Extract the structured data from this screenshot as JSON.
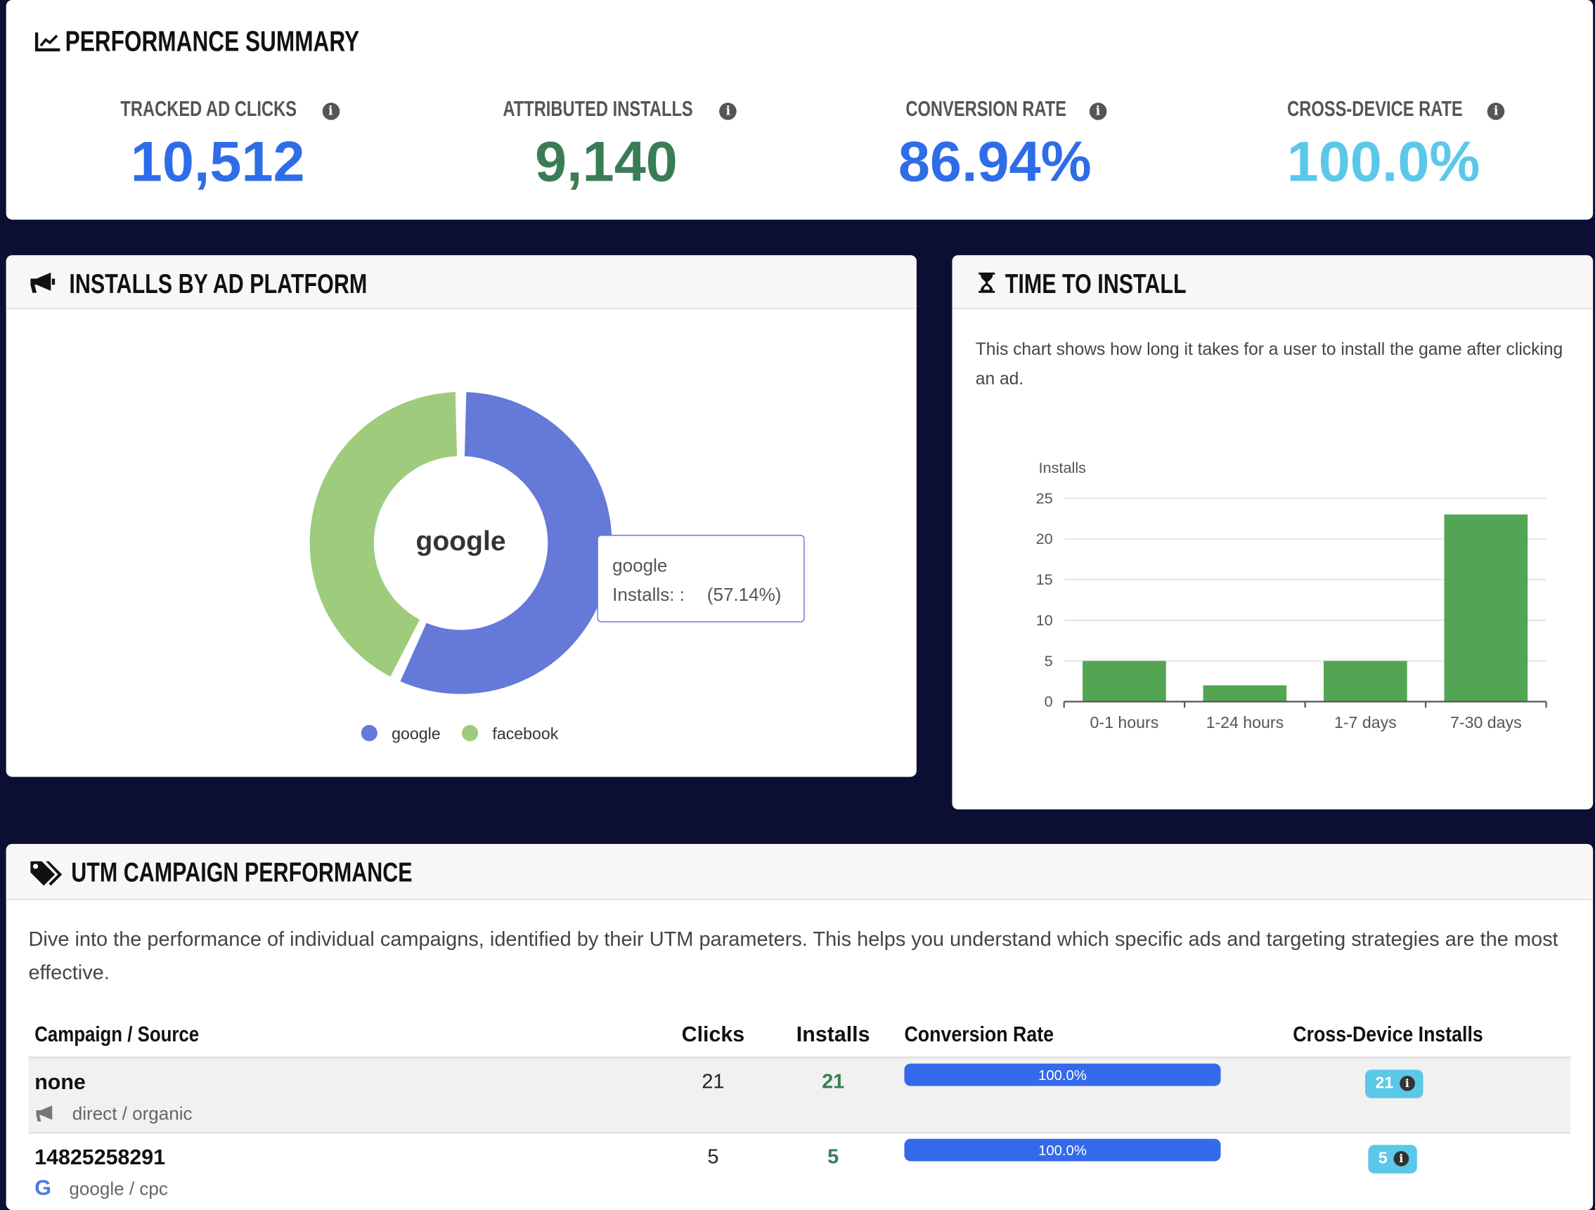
{
  "summary": {
    "title": "PERFORMANCE SUMMARY",
    "icon": "chart-line-icon",
    "metrics": [
      {
        "label": "TRACKED AD CLICKS",
        "value": "10,512",
        "color": "#2f6ce8"
      },
      {
        "label": "ATTRIBUTED INSTALLS",
        "value": "9,140",
        "color": "#3a7d55"
      },
      {
        "label": "CONVERSION RATE",
        "value": "86.94%",
        "color": "#2f6ce8"
      },
      {
        "label": "CROSS-DEVICE RATE",
        "value": "100.0%",
        "color": "#5bc8ea"
      }
    ]
  },
  "platform": {
    "title": "INSTALLS BY AD PLATFORM",
    "icon": "megaphone-icon",
    "center_label": "google",
    "tooltip": {
      "title": "google",
      "label": "Installs: :",
      "pct": "(57.14%)"
    },
    "chart_data": {
      "type": "pie",
      "categories": [
        "google",
        "facebook"
      ],
      "values": [
        57.14,
        42.86
      ],
      "colors": [
        "#6479d8",
        "#9fcb7c"
      ],
      "legend": "bottom"
    }
  },
  "time": {
    "title": "TIME TO INSTALL",
    "icon": "hourglass-icon",
    "description": "This chart shows how long it takes for a user to install the game after clicking an ad.",
    "chart_data": {
      "type": "bar",
      "categories": [
        "0-1 hours",
        "1-24 hours",
        "1-7 days",
        "7-30 days"
      ],
      "values": [
        5,
        2,
        5,
        23
      ],
      "ylabel": "Installs",
      "ylim": [
        0,
        25
      ],
      "yticks": [
        "0",
        "5",
        "10",
        "15",
        "20",
        "25"
      ],
      "color": "#53a553",
      "grid": true
    }
  },
  "utm": {
    "title": "UTM CAMPAIGN PERFORMANCE",
    "icon": "tags-icon",
    "description": "Dive into the performance of individual campaigns, identified by their UTM parameters. This helps you understand which specific ads and targeting strategies are the most effective.",
    "columns": [
      "Campaign / Source",
      "Clicks",
      "Installs",
      "Conversion Rate",
      "Cross-Device Installs"
    ],
    "rows": [
      {
        "campaign": "none",
        "source": "direct / organic",
        "source_icon": "megaphone-icon",
        "clicks": "21",
        "installs": "21",
        "conversion": "100.0%",
        "conversion_pct": 100,
        "cross_device": "21"
      },
      {
        "campaign": "14825258291",
        "source": "google / cpc",
        "source_icon": "google-icon",
        "clicks": "5",
        "installs": "5",
        "conversion": "100.0%",
        "conversion_pct": 100,
        "cross_device": "5"
      }
    ]
  }
}
